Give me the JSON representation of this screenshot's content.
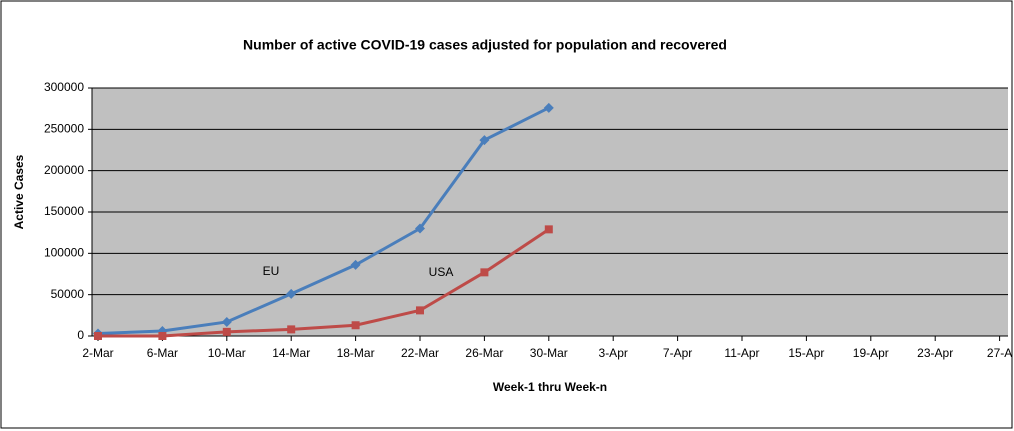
{
  "chart_data": {
    "type": "line",
    "title": "Number of active COVID-19 cases adjusted for population and recovered",
    "x_label": "Week-1  thru  Week-n",
    "y_label": "Active Cases",
    "categories": [
      "2-Mar",
      "6-Mar",
      "10-Mar",
      "14-Mar",
      "18-Mar",
      "22-Mar",
      "26-Mar",
      "30-Mar",
      "3-Apr",
      "7-Apr",
      "11-Apr",
      "15-Apr",
      "19-Apr",
      "23-Apr",
      "27-A"
    ],
    "series": [
      {
        "name": "EU",
        "color": "#4a7ebb",
        "marker": "diamond",
        "values": [
          3000,
          6000,
          17000,
          51000,
          86000,
          130000,
          237000,
          276000,
          null,
          null,
          null,
          null,
          null,
          null,
          null
        ]
      },
      {
        "name": "USA",
        "color": "#be4b48",
        "marker": "square",
        "values": [
          0,
          0,
          5000,
          8000,
          13000,
          31000,
          77000,
          129000,
          null,
          null,
          null,
          null,
          null,
          null,
          null
        ]
      }
    ],
    "annotations": [
      "EU",
      "USA"
    ],
    "ylim": [
      0,
      300000
    ],
    "yticks": [
      0,
      50000,
      100000,
      150000,
      200000,
      250000,
      300000
    ],
    "grid": true
  }
}
